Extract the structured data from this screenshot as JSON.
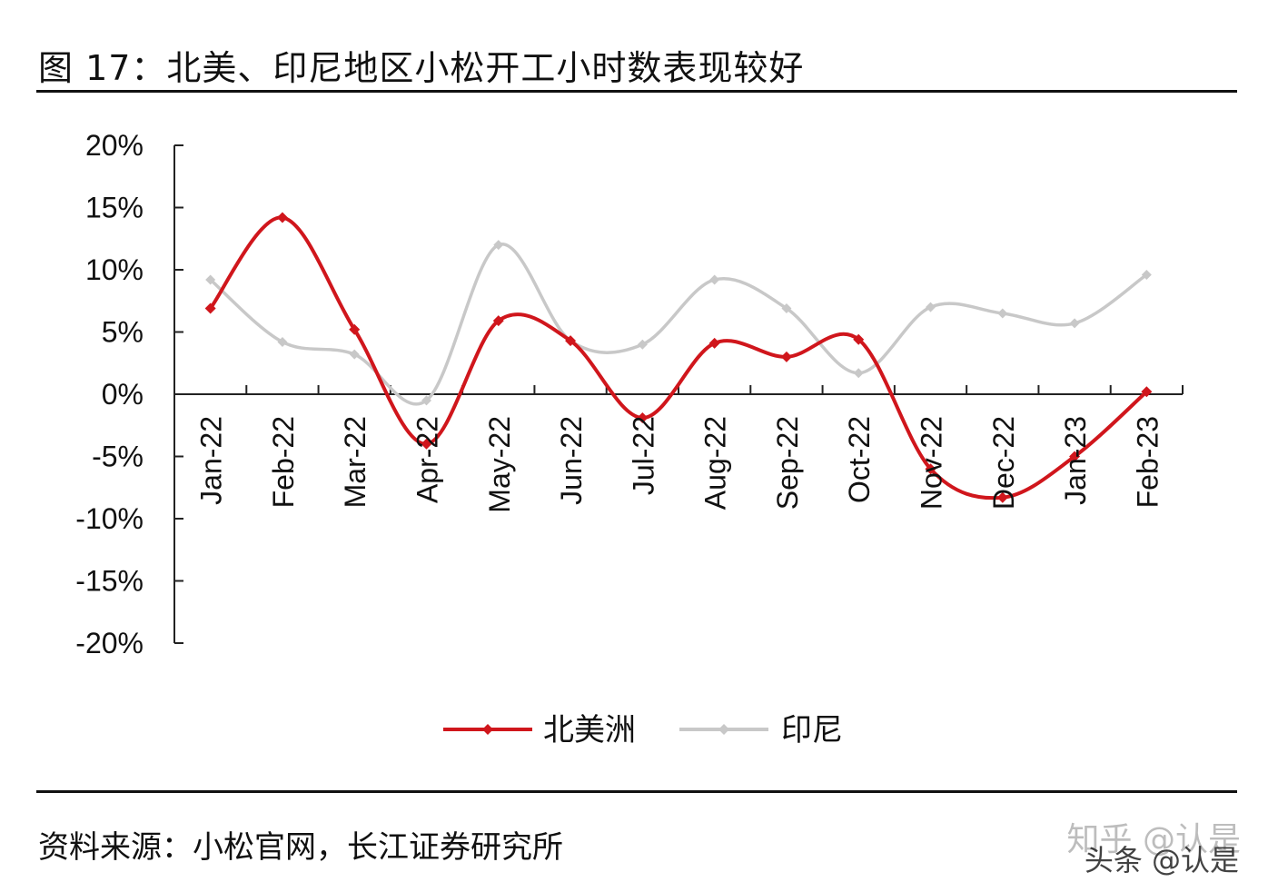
{
  "figure": {
    "title": "图 17：北美、印尼地区小松开工小时数表现较好",
    "source": "资料来源：小松官网，长江证券研究所",
    "watermark": "知乎 @认是",
    "watermark2": "头条 @认是"
  },
  "chart_data": {
    "type": "line",
    "categories": [
      "Jan-22",
      "Feb-22",
      "Mar-22",
      "Apr-22",
      "May-22",
      "Jun-22",
      "Jul-22",
      "Aug-22",
      "Sep-22",
      "Oct-22",
      "Nov-22",
      "Dec-22",
      "Jan-23",
      "Feb-23"
    ],
    "y_ticks": [
      "20%",
      "15%",
      "10%",
      "5%",
      "0%",
      "-5%",
      "-10%",
      "-15%",
      "-20%"
    ],
    "ylim": [
      -20,
      20
    ],
    "ystep": 5,
    "grid": false,
    "legend_position": "bottom",
    "series": [
      {
        "name": "北美洲",
        "color": "#d0161c",
        "values": [
          6.9,
          14.2,
          5.2,
          -4.0,
          5.9,
          4.3,
          -1.9,
          4.1,
          3.0,
          4.4,
          -6.0,
          -8.3,
          -5.0,
          0.2
        ]
      },
      {
        "name": "印尼",
        "color": "#c8c8c8",
        "values": [
          9.2,
          4.2,
          3.2,
          -0.5,
          12.0,
          4.3,
          4.0,
          9.2,
          6.9,
          1.7,
          7.0,
          6.5,
          5.7,
          9.6
        ]
      }
    ]
  }
}
